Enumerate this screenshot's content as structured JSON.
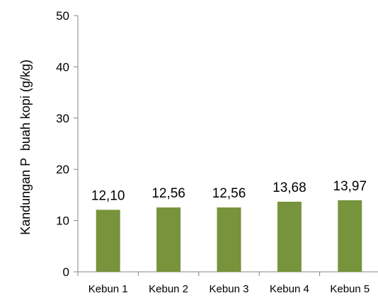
{
  "chart_data": {
    "type": "bar",
    "title": "",
    "xlabel": "",
    "ylabel": "Kandungan P  buah kopi (g/kg)",
    "categories": [
      "Kebun 1",
      "Kebun 2",
      "Kebun 3",
      "Kebun 4",
      "Kebun 5"
    ],
    "values": [
      12.1,
      12.56,
      12.56,
      13.68,
      13.97
    ],
    "data_labels": [
      "12,10",
      "12,56",
      "12,56",
      "13,68",
      "13,97"
    ],
    "ylim": [
      0,
      50
    ],
    "yticks": [
      0,
      10,
      20,
      30,
      40,
      50
    ],
    "ytick_labels": [
      "0",
      "10",
      "20",
      "30",
      "40",
      "50"
    ],
    "grid": false,
    "legend": "none",
    "colors": {
      "bar": "#77933C",
      "axis": "#868686"
    }
  }
}
